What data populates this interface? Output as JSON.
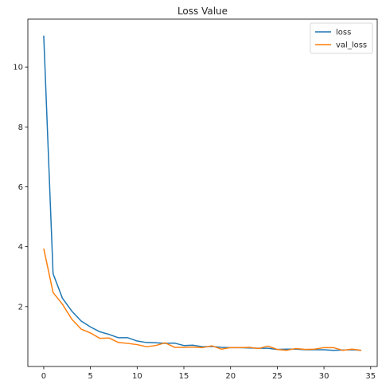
{
  "chart_data": {
    "type": "line",
    "title": "Loss Value",
    "xlabel": "",
    "ylabel": "",
    "xlim": [
      -1.7,
      35.7
    ],
    "ylim": [
      0.0,
      11.6
    ],
    "xticks": [
      0,
      5,
      10,
      15,
      20,
      25,
      30,
      35
    ],
    "yticks": [
      2,
      4,
      6,
      8,
      10
    ],
    "grid": false,
    "legend_position": "top-right",
    "x": [
      0,
      1,
      2,
      3,
      4,
      5,
      6,
      7,
      8,
      9,
      10,
      11,
      12,
      13,
      14,
      15,
      16,
      17,
      18,
      19,
      20,
      21,
      22,
      23,
      24,
      25,
      26,
      27,
      28,
      29,
      30,
      31,
      32,
      33,
      34
    ],
    "series": [
      {
        "name": "loss",
        "color": "#1f77b4",
        "values": [
          11.05,
          3.1,
          2.28,
          1.85,
          1.52,
          1.32,
          1.16,
          1.07,
          0.96,
          0.96,
          0.85,
          0.8,
          0.79,
          0.77,
          0.78,
          0.7,
          0.71,
          0.66,
          0.67,
          0.64,
          0.63,
          0.63,
          0.62,
          0.61,
          0.61,
          0.57,
          0.58,
          0.58,
          0.56,
          0.56,
          0.56,
          0.54,
          0.55,
          0.56,
          0.54
        ]
      },
      {
        "name": "val_loss",
        "color": "#ff7f0e",
        "values": [
          3.94,
          2.47,
          2.08,
          1.58,
          1.25,
          1.12,
          0.94,
          0.95,
          0.8,
          0.77,
          0.73,
          0.66,
          0.7,
          0.79,
          0.64,
          0.64,
          0.65,
          0.63,
          0.69,
          0.58,
          0.63,
          0.63,
          0.64,
          0.6,
          0.68,
          0.57,
          0.54,
          0.6,
          0.57,
          0.58,
          0.63,
          0.63,
          0.54,
          0.58,
          0.54
        ]
      }
    ]
  }
}
